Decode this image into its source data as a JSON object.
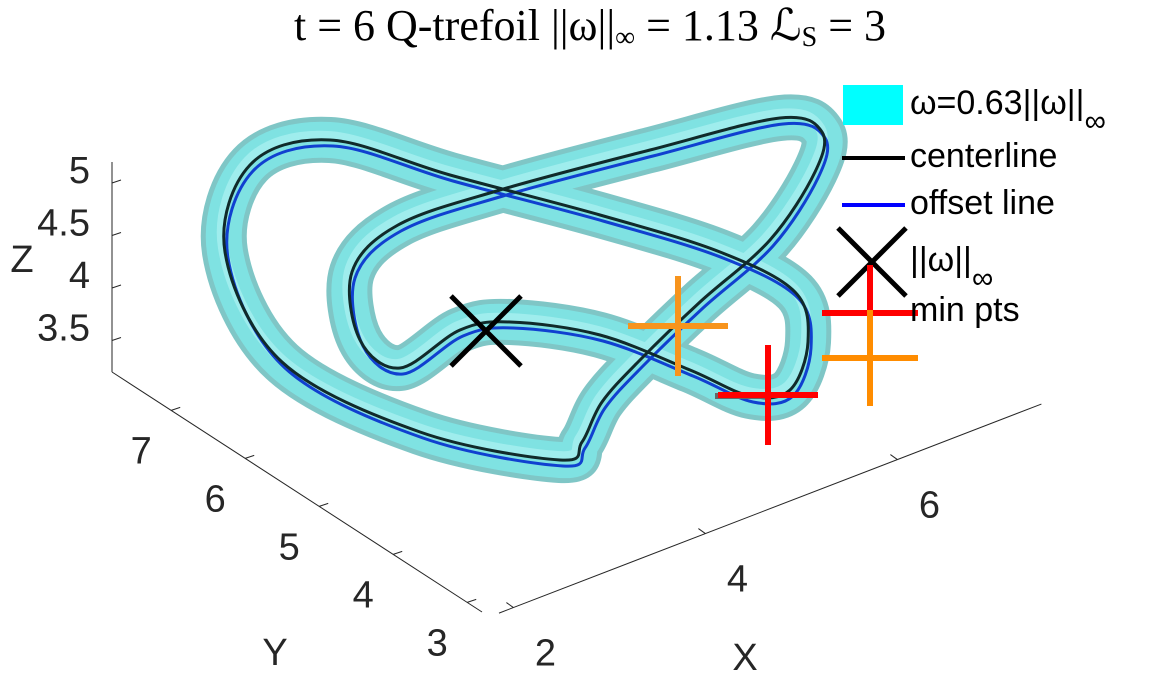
{
  "chart_data": {
    "type": "line3d",
    "title": [
      {
        "text": "t = 6  Q-trefoil  ||ω||"
      },
      {
        "sub": "∞"
      },
      {
        "text": " = 1.13  ℒ"
      },
      {
        "sub": "S"
      },
      {
        "text": " = 3"
      }
    ],
    "xlabel": "X",
    "ylabel": "Y",
    "zlabel": "Z",
    "xlim": [
      1.75,
      7.5
    ],
    "ylim": [
      2.8,
      7.8
    ],
    "zlim": [
      3.2,
      5.2
    ],
    "xticks": [
      2,
      4,
      6
    ],
    "yticks": [
      3,
      4,
      5,
      6,
      7
    ],
    "zticks": [
      3.5,
      4,
      4.5,
      5
    ],
    "grid": false,
    "legend": [
      {
        "text": "ω=0.63||ω||",
        "sub": "∞",
        "color": "#00ffff",
        "kind": "patch"
      },
      {
        "text": "centerline",
        "color": "#000000",
        "kind": "line"
      },
      {
        "text": "offset line",
        "color": "#0000ff",
        "kind": "line"
      },
      {
        "text": "||ω||",
        "sub": "∞",
        "color": "#000000",
        "kind": "x"
      },
      {
        "text": "min pts",
        "color": "#ff0000",
        "kind": "plus",
        "color2": "#ff8c00"
      }
    ]
  }
}
